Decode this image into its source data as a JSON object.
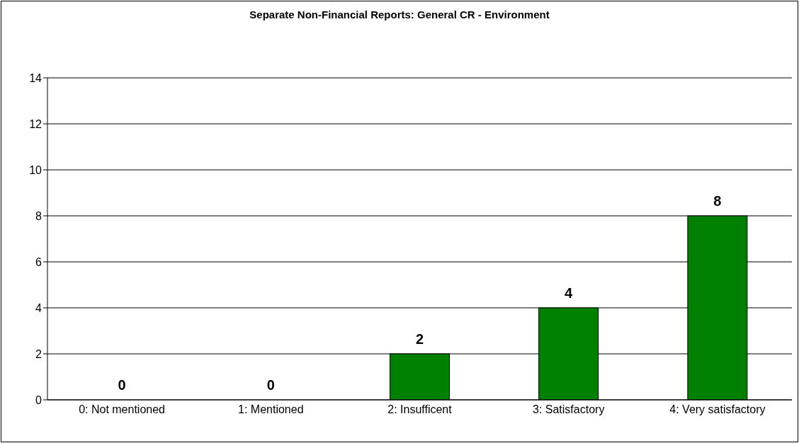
{
  "chart_data": {
    "type": "bar",
    "title": "Separate Non-Financial Reports: General CR - Environment",
    "categories": [
      "0: Not mentioned",
      "1: Mentioned",
      "2: Insufficent",
      "3: Satisfactory",
      "4: Very satisfactory"
    ],
    "values": [
      0,
      0,
      2,
      4,
      8
    ],
    "color": "#008000",
    "ylim": [
      0,
      14
    ],
    "yticks": [
      0,
      2,
      4,
      6,
      8,
      10,
      12,
      14
    ],
    "grid": "y",
    "data_labels": true
  }
}
